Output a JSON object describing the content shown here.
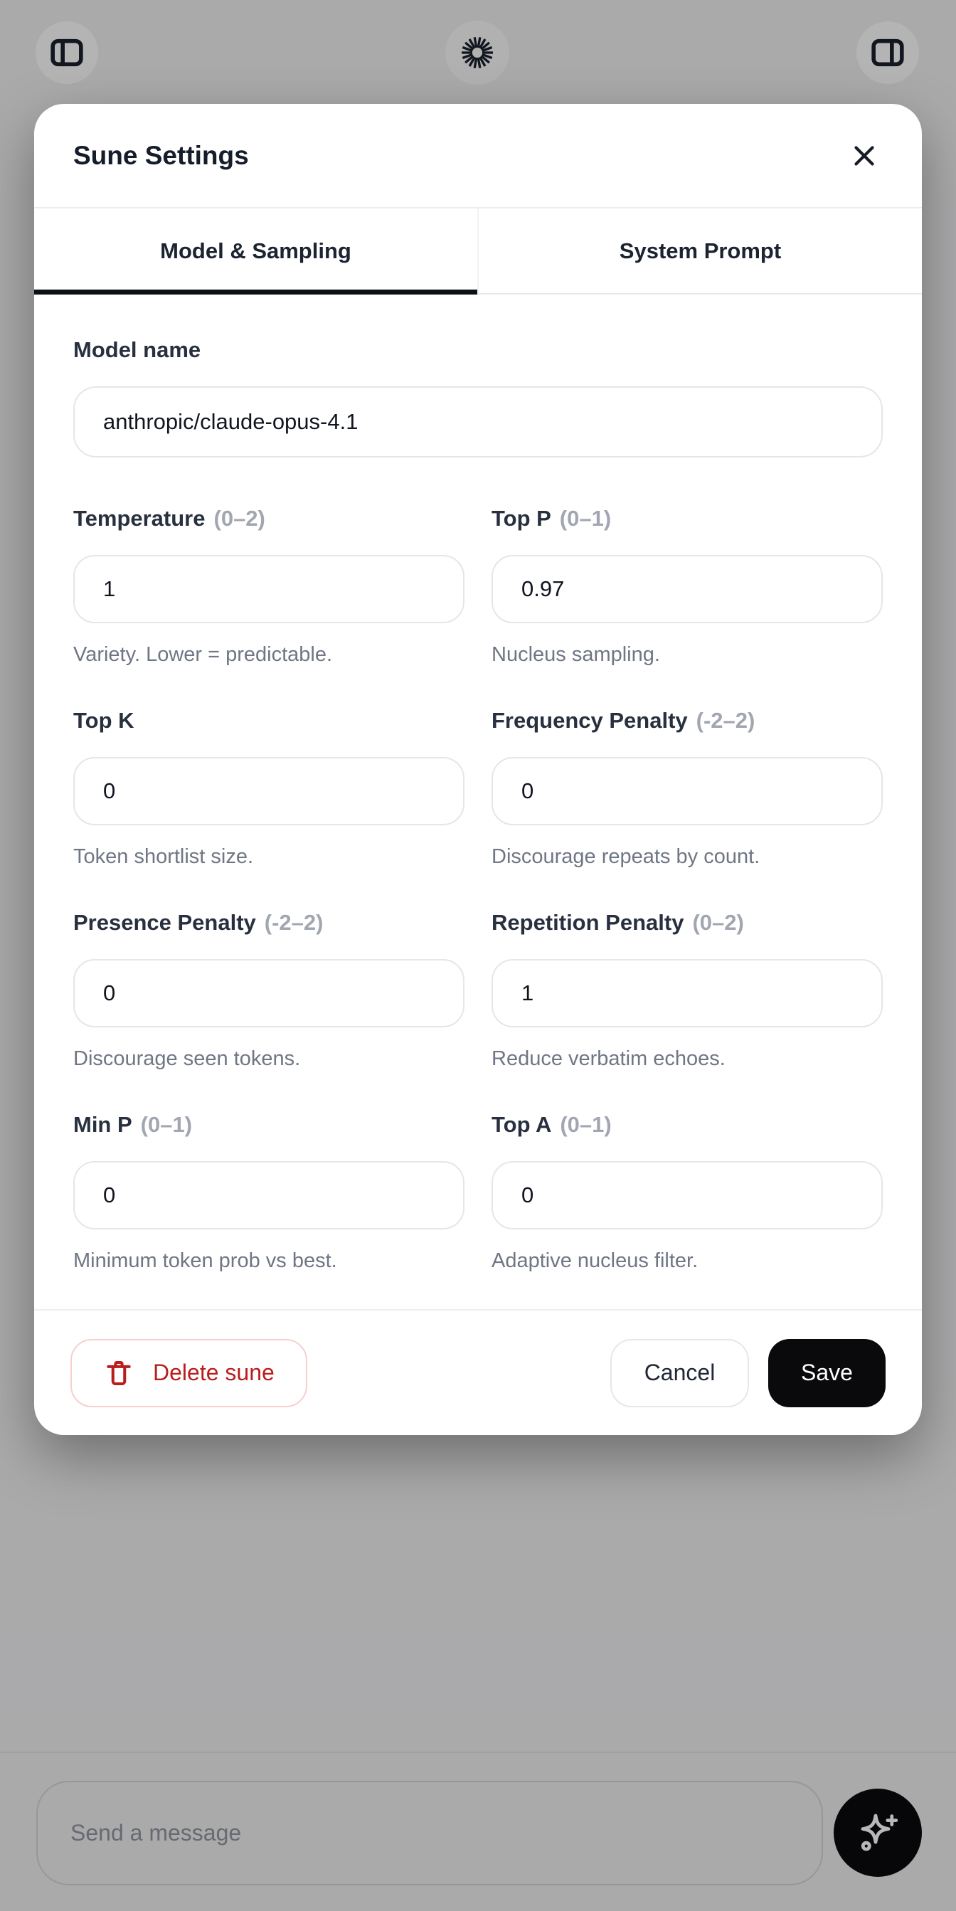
{
  "topbar": {
    "left_button": "toggle-left-panel",
    "center_button": "loading-burst",
    "right_button": "toggle-right-panel"
  },
  "modal": {
    "title": "Sune Settings",
    "tabs": [
      {
        "label": "Model & Sampling",
        "active": true
      },
      {
        "label": "System Prompt",
        "active": false
      }
    ],
    "model_name": {
      "label": "Model name",
      "value": "anthropic/claude-opus-4.1"
    },
    "fields": [
      {
        "label": "Temperature",
        "range": "(0–2)",
        "value": "1",
        "hint": "Variety. Lower = predictable."
      },
      {
        "label": "Top P",
        "range": "(0–1)",
        "value": "0.97",
        "hint": "Nucleus sampling."
      },
      {
        "label": "Top K",
        "range": "",
        "value": "0",
        "hint": "Token shortlist size."
      },
      {
        "label": "Frequency Penalty",
        "range": "(-2–2)",
        "value": "0",
        "hint": "Discourage repeats by count."
      },
      {
        "label": "Presence Penalty",
        "range": "(-2–2)",
        "value": "0",
        "hint": "Discourage seen tokens."
      },
      {
        "label": "Repetition Penalty",
        "range": "(0–2)",
        "value": "1",
        "hint": "Reduce verbatim echoes."
      },
      {
        "label": "Min P",
        "range": "(0–1)",
        "value": "0",
        "hint": "Minimum token prob vs best."
      },
      {
        "label": "Top A",
        "range": "(0–1)",
        "value": "0",
        "hint": "Adaptive nucleus filter."
      }
    ],
    "footer": {
      "delete_label": "Delete sune",
      "cancel_label": "Cancel",
      "save_label": "Save"
    }
  },
  "composer": {
    "placeholder": "Send a message"
  },
  "colors": {
    "danger": "#ba1d1d",
    "danger_border": "#f8cfcf",
    "save_bg": "#0a0a0c",
    "active_tab_underline": "#0c0f15",
    "scrim": "rgba(0,0,0,0.28)",
    "dark_text": "#151c2a",
    "muted_text": "#6f7684",
    "range_text": "#a1a6b0",
    "input_border": "#e4e6e9"
  }
}
